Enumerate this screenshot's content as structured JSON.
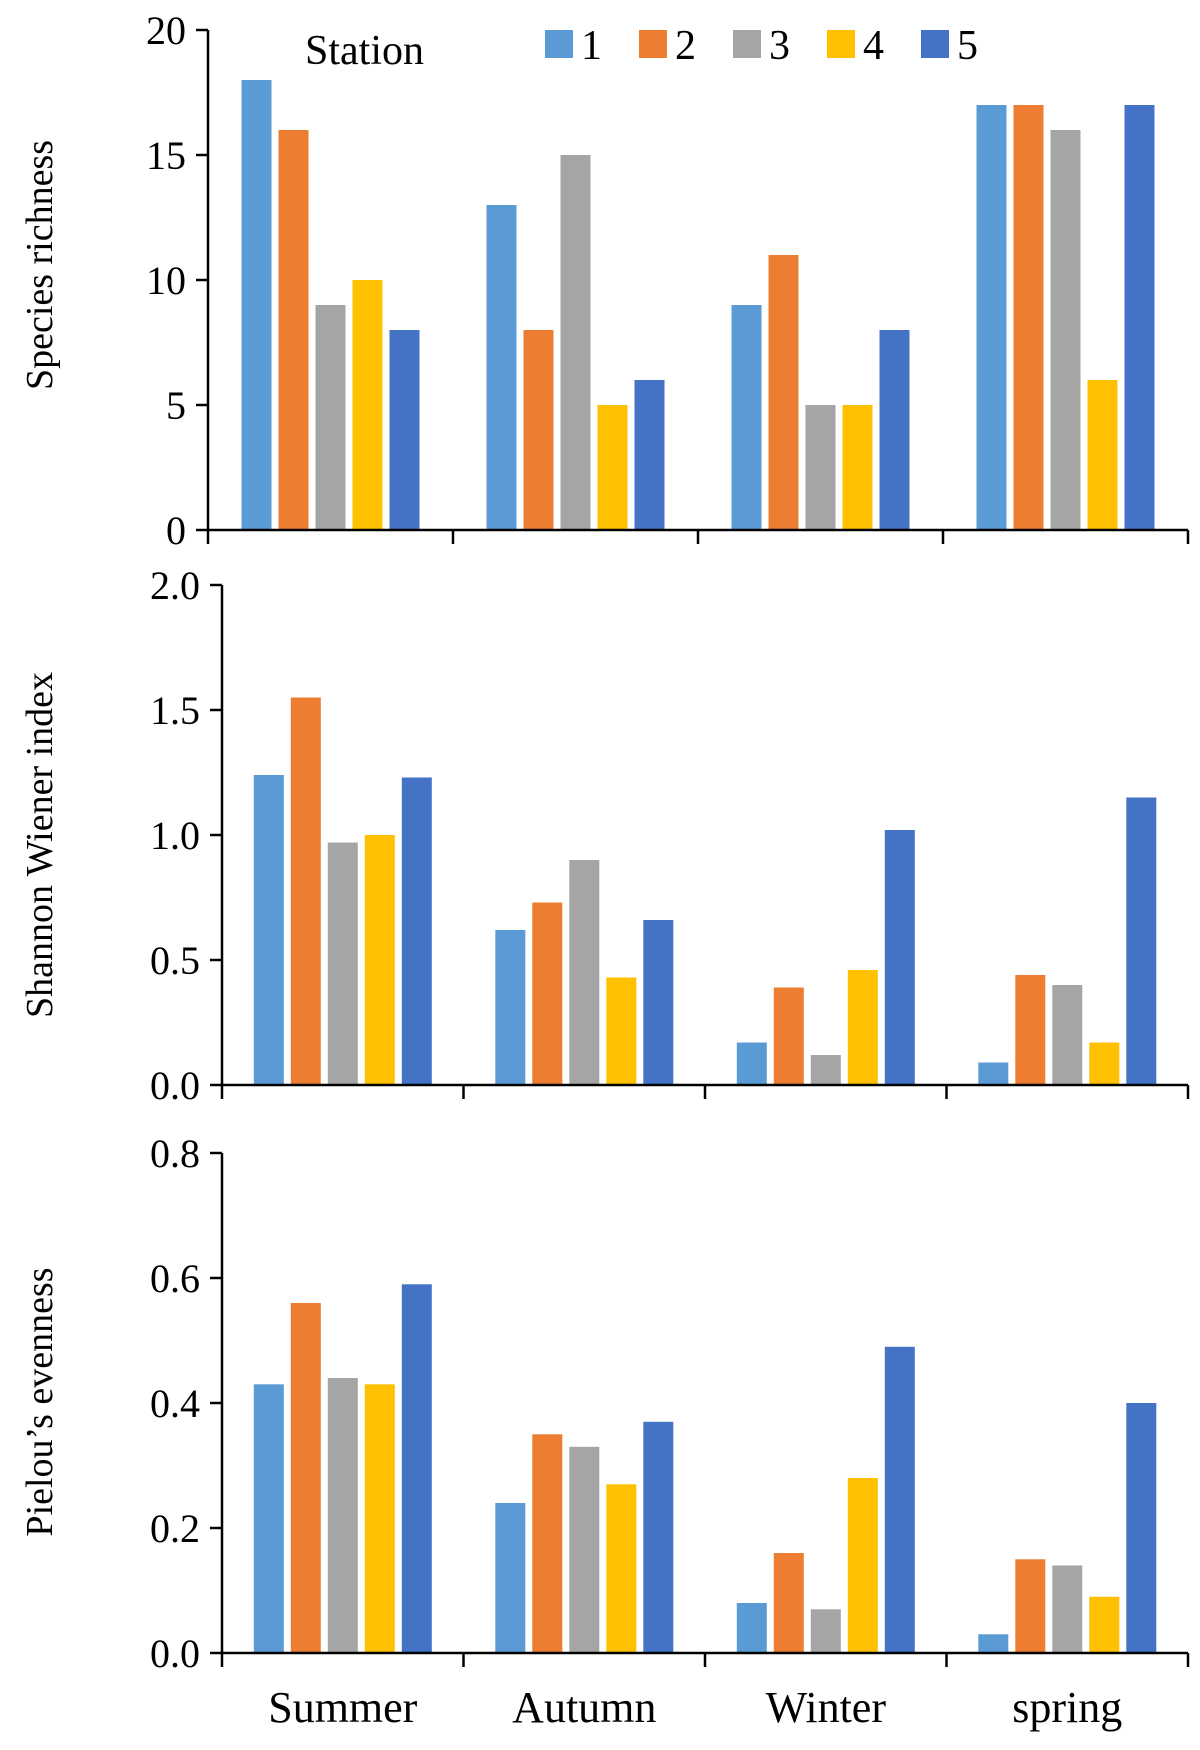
{
  "legend": {
    "title": "Station",
    "entries": [
      "1",
      "2",
      "3",
      "4",
      "5"
    ]
  },
  "colors": {
    "series": [
      "#5B9BD5",
      "#ED7D31",
      "#A5A5A5",
      "#FFC000",
      "#4472C4"
    ],
    "axis": "#000000"
  },
  "chart_data": [
    {
      "type": "bar",
      "title": "",
      "xlabel": "",
      "ylabel": "Species richness",
      "categories": [
        "Summer",
        "Autumn",
        "Winter",
        "spring"
      ],
      "ylim": [
        0,
        20
      ],
      "yticks": [
        0,
        5,
        10,
        15,
        20
      ],
      "ytick_labels": [
        "0",
        "5",
        "10",
        "15",
        "20"
      ],
      "grid": false,
      "legend_position": "top",
      "series": [
        {
          "name": "1",
          "values": [
            18,
            13,
            9,
            17
          ]
        },
        {
          "name": "2",
          "values": [
            16,
            8,
            11,
            17
          ]
        },
        {
          "name": "3",
          "values": [
            9,
            15,
            5,
            16
          ]
        },
        {
          "name": "4",
          "values": [
            10,
            5,
            5,
            6
          ]
        },
        {
          "name": "5",
          "values": [
            8,
            6,
            8,
            17
          ]
        }
      ]
    },
    {
      "type": "bar",
      "title": "",
      "xlabel": "",
      "ylabel": "Shannon Wiener index",
      "categories": [
        "Summer",
        "Autumn",
        "Winter",
        "spring"
      ],
      "ylim": [
        0,
        2.0
      ],
      "yticks": [
        0,
        0.5,
        1.0,
        1.5,
        2.0
      ],
      "ytick_labels": [
        "0.0",
        "0.5",
        "1.0",
        "1.5",
        "2.0"
      ],
      "grid": false,
      "series": [
        {
          "name": "1",
          "values": [
            1.24,
            0.62,
            0.17,
            0.09
          ]
        },
        {
          "name": "2",
          "values": [
            1.55,
            0.73,
            0.39,
            0.44
          ]
        },
        {
          "name": "3",
          "values": [
            0.97,
            0.9,
            0.12,
            0.4
          ]
        },
        {
          "name": "4",
          "values": [
            1.0,
            0.43,
            0.46,
            0.17
          ]
        },
        {
          "name": "5",
          "values": [
            1.23,
            0.66,
            1.02,
            1.15
          ]
        }
      ]
    },
    {
      "type": "bar",
      "title": "",
      "xlabel": "",
      "ylabel": "Pielou’s evenness",
      "categories": [
        "Summer",
        "Autumn",
        "Winter",
        "spring"
      ],
      "ylim": [
        0,
        0.8
      ],
      "yticks": [
        0,
        0.2,
        0.4,
        0.6,
        0.8
      ],
      "ytick_labels": [
        "0.0",
        "0.2",
        "0.4",
        "0.6",
        "0.8"
      ],
      "grid": false,
      "series": [
        {
          "name": "1",
          "values": [
            0.43,
            0.24,
            0.08,
            0.03
          ]
        },
        {
          "name": "2",
          "values": [
            0.56,
            0.35,
            0.16,
            0.15
          ]
        },
        {
          "name": "3",
          "values": [
            0.44,
            0.33,
            0.07,
            0.14
          ]
        },
        {
          "name": "4",
          "values": [
            0.43,
            0.27,
            0.28,
            0.09
          ]
        },
        {
          "name": "5",
          "values": [
            0.59,
            0.37,
            0.49,
            0.4
          ]
        }
      ]
    }
  ]
}
